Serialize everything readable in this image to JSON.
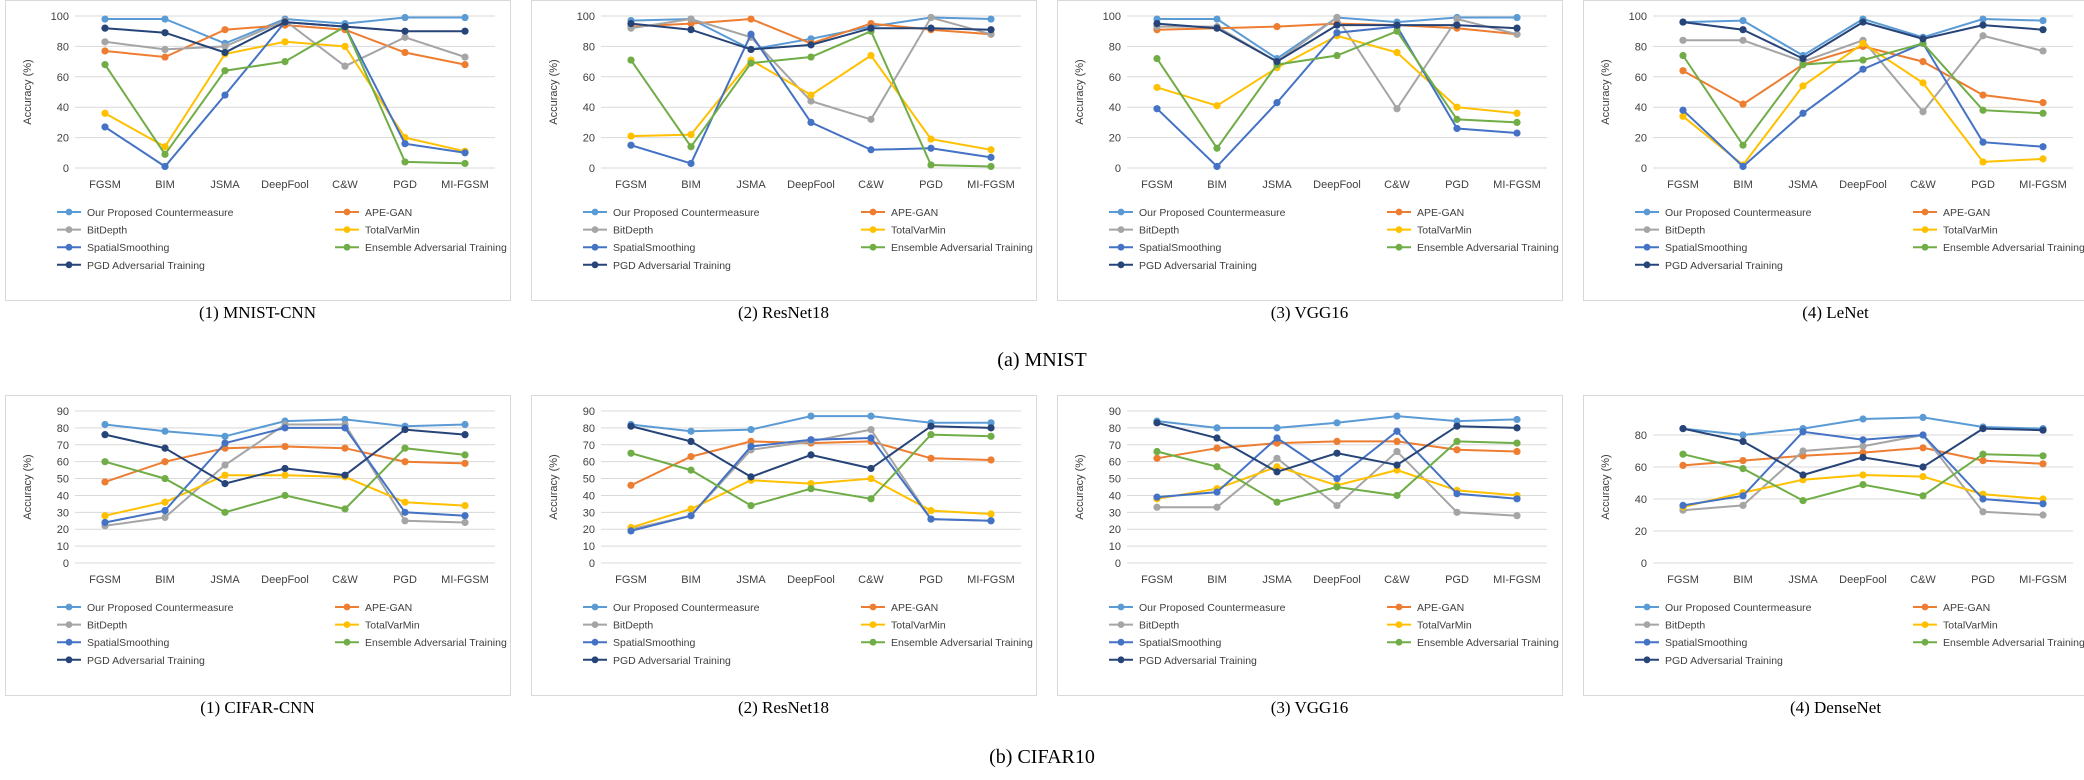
{
  "series_meta": [
    {
      "name": "Our Proposed Countermeasure",
      "color": "#5b9bd5"
    },
    {
      "name": "APE-GAN",
      "color": "#ed7d31"
    },
    {
      "name": "BitDepth",
      "color": "#a5a5a5"
    },
    {
      "name": "TotalVarMin",
      "color": "#ffc000"
    },
    {
      "name": "SpatialSmoothing",
      "color": "#4472c4"
    },
    {
      "name": "Ensemble Adversarial Training",
      "color": "#70ad47"
    },
    {
      "name": "PGD Adversarial Training",
      "color": "#264478"
    }
  ],
  "groups": [
    {
      "caption": "(a) MNIST"
    },
    {
      "caption": "(b) CIFAR10"
    }
  ],
  "chart_data": [
    {
      "type": "line",
      "caption": "(1) MNIST-CNN",
      "group": 0,
      "categories": [
        "FGSM",
        "BIM",
        "JSMA",
        "DeepFool",
        "C&W",
        "PGD",
        "MI-FGSM"
      ],
      "ylabel": "Accuracy (%)",
      "ylim": [
        0,
        100
      ],
      "yticks": [
        0,
        20,
        40,
        60,
        80,
        100
      ],
      "grid": true,
      "legend": "bottom",
      "series": [
        {
          "name": "Our Proposed Countermeasure",
          "values": [
            98,
            98,
            82,
            98,
            95,
            99,
            99
          ]
        },
        {
          "name": "APE-GAN",
          "values": [
            77,
            73,
            91,
            94,
            91,
            76,
            68
          ]
        },
        {
          "name": "BitDepth",
          "values": [
            83,
            78,
            80,
            97,
            67,
            86,
            73
          ]
        },
        {
          "name": "TotalVarMin",
          "values": [
            36,
            14,
            75,
            83,
            80,
            20,
            11
          ]
        },
        {
          "name": "SpatialSmoothing",
          "values": [
            27,
            1,
            48,
            96,
            93,
            16,
            10
          ]
        },
        {
          "name": "Ensemble Adversarial Training",
          "values": [
            68,
            9,
            64,
            70,
            93,
            4,
            3
          ]
        },
        {
          "name": "PGD Adversarial Training",
          "values": [
            92,
            89,
            76,
            96,
            93,
            90,
            90
          ]
        }
      ]
    },
    {
      "type": "line",
      "caption": "(2) ResNet18",
      "group": 0,
      "categories": [
        "FGSM",
        "BIM",
        "JSMA",
        "DeepFool",
        "C&W",
        "PGD",
        "MI-FGSM"
      ],
      "ylabel": "Accuracy (%)",
      "ylim": [
        0,
        100
      ],
      "yticks": [
        0,
        20,
        40,
        60,
        80,
        100
      ],
      "grid": true,
      "legend": "bottom",
      "series": [
        {
          "name": "Our Proposed Countermeasure",
          "values": [
            97,
            98,
            78,
            85,
            93,
            99,
            98
          ]
        },
        {
          "name": "APE-GAN",
          "values": [
            93,
            95,
            98,
            82,
            95,
            91,
            88
          ]
        },
        {
          "name": "BitDepth",
          "values": [
            92,
            98,
            86,
            44,
            32,
            99,
            88
          ]
        },
        {
          "name": "TotalVarMin",
          "values": [
            21,
            22,
            71,
            48,
            74,
            19,
            12
          ]
        },
        {
          "name": "SpatialSmoothing",
          "values": [
            15,
            3,
            88,
            30,
            12,
            13,
            7
          ]
        },
        {
          "name": "Ensemble Adversarial Training",
          "values": [
            71,
            14,
            69,
            73,
            90,
            2,
            1
          ]
        },
        {
          "name": "PGD Adversarial Training",
          "values": [
            95,
            91,
            78,
            81,
            92,
            92,
            91
          ]
        }
      ]
    },
    {
      "type": "line",
      "caption": "(3) VGG16",
      "group": 0,
      "categories": [
        "FGSM",
        "BIM",
        "JSMA",
        "DeepFool",
        "C&W",
        "PGD",
        "MI-FGSM"
      ],
      "ylabel": "Accuracy (%)",
      "ylim": [
        0,
        100
      ],
      "yticks": [
        0,
        20,
        40,
        60,
        80,
        100
      ],
      "grid": true,
      "legend": "bottom",
      "series": [
        {
          "name": "Our Proposed Countermeasure",
          "values": [
            98,
            98,
            72,
            99,
            96,
            99,
            99
          ]
        },
        {
          "name": "APE-GAN",
          "values": [
            91,
            92,
            93,
            95,
            94,
            92,
            88
          ]
        },
        {
          "name": "BitDepth",
          "values": [
            93,
            93,
            70,
            99,
            39,
            98,
            88
          ]
        },
        {
          "name": "TotalVarMin",
          "values": [
            53,
            41,
            66,
            87,
            76,
            40,
            36
          ]
        },
        {
          "name": "SpatialSmoothing",
          "values": [
            39,
            1,
            43,
            89,
            93,
            26,
            23
          ]
        },
        {
          "name": "Ensemble Adversarial Training",
          "values": [
            72,
            13,
            68,
            74,
            90,
            32,
            30
          ]
        },
        {
          "name": "PGD Adversarial Training",
          "values": [
            95,
            92,
            70,
            94,
            94,
            94,
            92
          ]
        }
      ]
    },
    {
      "type": "line",
      "caption": "(4) LeNet",
      "group": 0,
      "categories": [
        "FGSM",
        "BIM",
        "JSMA",
        "DeepFool",
        "C&W",
        "PGD",
        "MI-FGSM"
      ],
      "ylabel": "Accuracy (%)",
      "ylim": [
        0,
        100
      ],
      "yticks": [
        0,
        20,
        40,
        60,
        80,
        100
      ],
      "grid": true,
      "legend": "bottom",
      "series": [
        {
          "name": "Our Proposed Countermeasure",
          "values": [
            96,
            97,
            74,
            98,
            86,
            98,
            97
          ]
        },
        {
          "name": "APE-GAN",
          "values": [
            64,
            42,
            68,
            80,
            70,
            48,
            43
          ]
        },
        {
          "name": "BitDepth",
          "values": [
            84,
            84,
            70,
            84,
            37,
            87,
            77
          ]
        },
        {
          "name": "TotalVarMin",
          "values": [
            34,
            2,
            54,
            82,
            56,
            4,
            6
          ]
        },
        {
          "name": "SpatialSmoothing",
          "values": [
            38,
            1,
            36,
            65,
            82,
            17,
            14
          ]
        },
        {
          "name": "Ensemble Adversarial Training",
          "values": [
            74,
            15,
            68,
            71,
            82,
            38,
            36
          ]
        },
        {
          "name": "PGD Adversarial Training",
          "values": [
            96,
            91,
            72,
            96,
            85,
            94,
            91
          ]
        }
      ]
    },
    {
      "type": "line",
      "caption": "(1) CIFAR-CNN",
      "group": 1,
      "categories": [
        "FGSM",
        "BIM",
        "JSMA",
        "DeepFool",
        "C&W",
        "PGD",
        "MI-FGSM"
      ],
      "ylabel": "Accuracy (%)",
      "ylim": [
        0,
        90
      ],
      "yticks": [
        0,
        10,
        20,
        30,
        40,
        50,
        60,
        70,
        80,
        90
      ],
      "grid": true,
      "legend": "bottom",
      "series": [
        {
          "name": "Our Proposed Countermeasure",
          "values": [
            82,
            78,
            75,
            84,
            85,
            81,
            82
          ]
        },
        {
          "name": "APE-GAN",
          "values": [
            48,
            60,
            68,
            69,
            68,
            60,
            59
          ]
        },
        {
          "name": "BitDepth",
          "values": [
            22,
            27,
            58,
            82,
            82,
            25,
            24
          ]
        },
        {
          "name": "TotalVarMin",
          "values": [
            28,
            36,
            52,
            52,
            51,
            36,
            34
          ]
        },
        {
          "name": "SpatialSmoothing",
          "values": [
            24,
            31,
            71,
            80,
            80,
            30,
            28
          ]
        },
        {
          "name": "Ensemble Adversarial Training",
          "values": [
            60,
            50,
            30,
            40,
            32,
            68,
            64
          ]
        },
        {
          "name": "PGD Adversarial Training",
          "values": [
            76,
            68,
            47,
            56,
            52,
            79,
            76
          ]
        }
      ]
    },
    {
      "type": "line",
      "caption": "(2) ResNet18",
      "group": 1,
      "categories": [
        "FGSM",
        "BIM",
        "JSMA",
        "DeepFool",
        "C&W",
        "PGD",
        "MI-FGSM"
      ],
      "ylabel": "Accuracy (%)",
      "ylim": [
        0,
        90
      ],
      "yticks": [
        0,
        10,
        20,
        30,
        40,
        50,
        60,
        70,
        80,
        90
      ],
      "grid": true,
      "legend": "bottom",
      "series": [
        {
          "name": "Our Proposed Countermeasure",
          "values": [
            82,
            78,
            79,
            87,
            87,
            83,
            83
          ]
        },
        {
          "name": "APE-GAN",
          "values": [
            46,
            63,
            72,
            71,
            72,
            62,
            61
          ]
        },
        {
          "name": "BitDepth",
          "values": [
            20,
            28,
            67,
            72,
            79,
            26,
            25
          ]
        },
        {
          "name": "TotalVarMin",
          "values": [
            21,
            32,
            49,
            47,
            50,
            31,
            29
          ]
        },
        {
          "name": "SpatialSmoothing",
          "values": [
            19,
            28,
            69,
            73,
            74,
            26,
            25
          ]
        },
        {
          "name": "Ensemble Adversarial Training",
          "values": [
            65,
            55,
            34,
            44,
            38,
            76,
            75
          ]
        },
        {
          "name": "PGD Adversarial Training",
          "values": [
            81,
            72,
            51,
            64,
            56,
            81,
            80
          ]
        }
      ]
    },
    {
      "type": "line",
      "caption": "(3) VGG16",
      "group": 1,
      "categories": [
        "FGSM",
        "BIM",
        "JSMA",
        "DeepFool",
        "C&W",
        "PGD",
        "MI-FGSM"
      ],
      "ylabel": "Accuracy (%)",
      "ylim": [
        0,
        90
      ],
      "yticks": [
        0,
        10,
        20,
        30,
        40,
        50,
        60,
        70,
        80,
        90
      ],
      "grid": true,
      "legend": "bottom",
      "series": [
        {
          "name": "Our Proposed Countermeasure",
          "values": [
            84,
            80,
            80,
            83,
            87,
            84,
            85
          ]
        },
        {
          "name": "APE-GAN",
          "values": [
            62,
            68,
            71,
            72,
            72,
            67,
            66
          ]
        },
        {
          "name": "BitDepth",
          "values": [
            33,
            33,
            62,
            34,
            66,
            30,
            28
          ]
        },
        {
          "name": "TotalVarMin",
          "values": [
            38,
            44,
            57,
            46,
            55,
            43,
            40
          ]
        },
        {
          "name": "SpatialSmoothing",
          "values": [
            39,
            42,
            74,
            50,
            78,
            41,
            38
          ]
        },
        {
          "name": "Ensemble Adversarial Training",
          "values": [
            66,
            57,
            36,
            45,
            40,
            72,
            71
          ]
        },
        {
          "name": "PGD Adversarial Training",
          "values": [
            83,
            74,
            54,
            65,
            58,
            81,
            80
          ]
        }
      ]
    },
    {
      "type": "line",
      "caption": "(4) DenseNet",
      "group": 1,
      "categories": [
        "FGSM",
        "BIM",
        "JSMA",
        "DeepFool",
        "C&W",
        "PGD",
        "MI-FGSM"
      ],
      "ylabel": "Accuracy (%)",
      "ylim": [
        0,
        95
      ],
      "yticks": [
        0,
        20,
        40,
        60,
        80
      ],
      "grid": true,
      "legend": "bottom",
      "series": [
        {
          "name": "Our Proposed Countermeasure",
          "values": [
            84,
            80,
            84,
            90,
            91,
            85,
            84
          ]
        },
        {
          "name": "APE-GAN",
          "values": [
            61,
            64,
            67,
            69,
            72,
            64,
            62
          ]
        },
        {
          "name": "BitDepth",
          "values": [
            33,
            36,
            70,
            73,
            80,
            32,
            30
          ]
        },
        {
          "name": "TotalVarMin",
          "values": [
            35,
            44,
            52,
            55,
            54,
            43,
            40
          ]
        },
        {
          "name": "SpatialSmoothing",
          "values": [
            36,
            42,
            82,
            77,
            80,
            40,
            37
          ]
        },
        {
          "name": "Ensemble Adversarial Training",
          "values": [
            68,
            59,
            39,
            49,
            42,
            68,
            67
          ]
        },
        {
          "name": "PGD Adversarial Training",
          "values": [
            84,
            76,
            55,
            66,
            60,
            84,
            83
          ]
        }
      ]
    }
  ]
}
